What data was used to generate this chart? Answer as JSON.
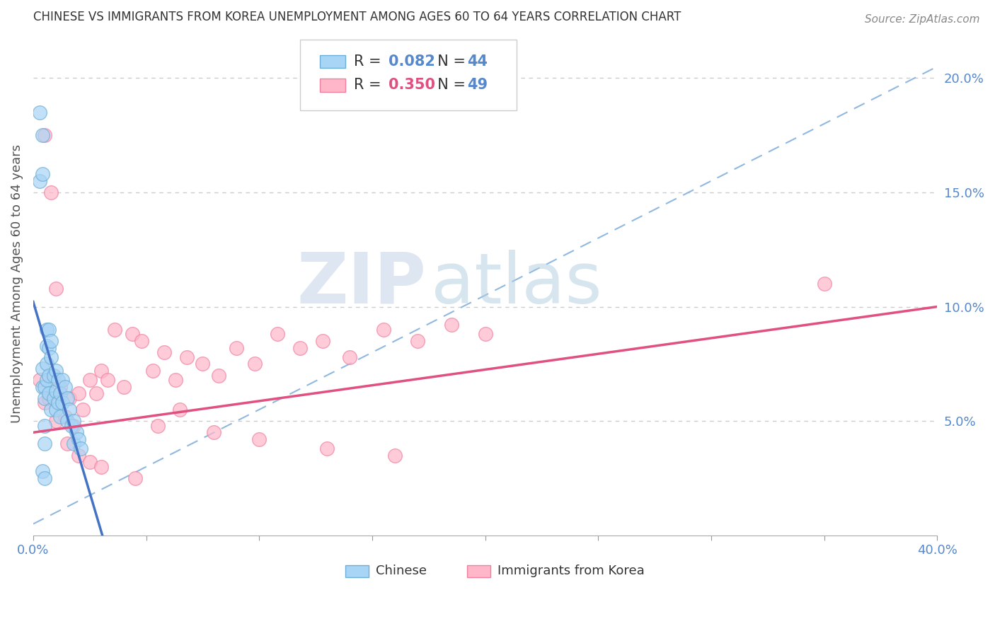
{
  "title": "CHINESE VS IMMIGRANTS FROM KOREA UNEMPLOYMENT AMONG AGES 60 TO 64 YEARS CORRELATION CHART",
  "source": "Source: ZipAtlas.com",
  "ylabel": "Unemployment Among Ages 60 to 64 years",
  "xlim": [
    0.0,
    0.4
  ],
  "ylim": [
    0.0,
    0.22
  ],
  "xtick_positions": [
    0.0,
    0.05,
    0.1,
    0.15,
    0.2,
    0.25,
    0.3,
    0.35,
    0.4
  ],
  "xticklabels": [
    "0.0%",
    "",
    "",
    "",
    "",
    "",
    "",
    "",
    "40.0%"
  ],
  "ytick_vals": [
    0.05,
    0.1,
    0.15,
    0.2
  ],
  "ytick_labels": [
    "5.0%",
    "10.0%",
    "15.0%",
    "20.0%"
  ],
  "watermark_zip": "ZIP",
  "watermark_atlas": "atlas",
  "chinese_fill_color": "#a8d4f5",
  "chinese_edge_color": "#6baed6",
  "korean_fill_color": "#ffb6c8",
  "korean_edge_color": "#f080a0",
  "chinese_reg_color": "#4472c4",
  "korean_reg_color": "#e05080",
  "dashed_line_color": "#90b8e0",
  "axis_tick_color": "#5588cc",
  "title_color": "#333333",
  "source_color": "#888888",
  "grid_color": "#cccccc",
  "ylabel_color": "#555555",
  "background_color": "#ffffff",
  "legend_edge_color": "#cccccc",
  "chinese_R": 0.082,
  "chinese_N": 44,
  "korean_R": 0.35,
  "korean_N": 49,
  "chinese_scatter_x": [
    0.003,
    0.003,
    0.004,
    0.004,
    0.004,
    0.004,
    0.004,
    0.005,
    0.005,
    0.005,
    0.005,
    0.005,
    0.006,
    0.006,
    0.006,
    0.006,
    0.007,
    0.007,
    0.007,
    0.007,
    0.008,
    0.008,
    0.008,
    0.009,
    0.009,
    0.01,
    0.01,
    0.01,
    0.011,
    0.011,
    0.012,
    0.012,
    0.013,
    0.013,
    0.014,
    0.015,
    0.015,
    0.016,
    0.017,
    0.018,
    0.018,
    0.019,
    0.02,
    0.021
  ],
  "chinese_scatter_y": [
    0.185,
    0.155,
    0.175,
    0.158,
    0.073,
    0.065,
    0.028,
    0.065,
    0.06,
    0.048,
    0.04,
    0.025,
    0.09,
    0.083,
    0.075,
    0.068,
    0.09,
    0.082,
    0.07,
    0.062,
    0.085,
    0.078,
    0.055,
    0.07,
    0.06,
    0.072,
    0.063,
    0.055,
    0.068,
    0.058,
    0.062,
    0.052,
    0.068,
    0.058,
    0.065,
    0.06,
    0.05,
    0.055,
    0.048,
    0.05,
    0.04,
    0.045,
    0.042,
    0.038
  ],
  "korean_scatter_x": [
    0.003,
    0.005,
    0.007,
    0.01,
    0.012,
    0.014,
    0.016,
    0.018,
    0.02,
    0.022,
    0.025,
    0.028,
    0.03,
    0.033,
    0.036,
    0.04,
    0.044,
    0.048,
    0.053,
    0.058,
    0.063,
    0.068,
    0.075,
    0.082,
    0.09,
    0.098,
    0.108,
    0.118,
    0.128,
    0.14,
    0.155,
    0.17,
    0.185,
    0.2,
    0.005,
    0.008,
    0.01,
    0.015,
    0.02,
    0.025,
    0.03,
    0.045,
    0.055,
    0.065,
    0.08,
    0.1,
    0.13,
    0.16,
    0.35
  ],
  "korean_scatter_y": [
    0.068,
    0.058,
    0.06,
    0.05,
    0.065,
    0.052,
    0.06,
    0.048,
    0.062,
    0.055,
    0.068,
    0.062,
    0.072,
    0.068,
    0.09,
    0.065,
    0.088,
    0.085,
    0.072,
    0.08,
    0.068,
    0.078,
    0.075,
    0.07,
    0.082,
    0.075,
    0.088,
    0.082,
    0.085,
    0.078,
    0.09,
    0.085,
    0.092,
    0.088,
    0.175,
    0.15,
    0.108,
    0.04,
    0.035,
    0.032,
    0.03,
    0.025,
    0.048,
    0.055,
    0.045,
    0.042,
    0.038,
    0.035,
    0.11
  ]
}
